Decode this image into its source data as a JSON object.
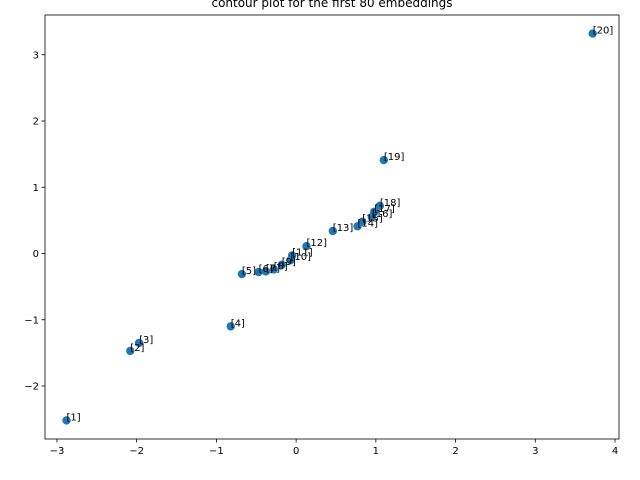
{
  "chart_data": {
    "type": "scatter",
    "title": "contour plot for the first 80 embeddings",
    "xlabel": "",
    "ylabel": "",
    "xlim": [
      -3.15,
      4.05
    ],
    "ylim": [
      -2.8,
      3.6
    ],
    "xticks": [
      -3,
      -2,
      -1,
      0,
      1,
      2,
      3,
      4
    ],
    "yticks": [
      -2,
      -1,
      0,
      1,
      2,
      3
    ],
    "grid": false,
    "marker_color": "#1f77b4",
    "points": [
      {
        "label": "[1]",
        "x": -2.88,
        "y": -2.52
      },
      {
        "label": "[2]",
        "x": -2.08,
        "y": -1.47
      },
      {
        "label": "[3]",
        "x": -1.97,
        "y": -1.35
      },
      {
        "label": "[4]",
        "x": -0.82,
        "y": -1.1
      },
      {
        "label": "[5]",
        "x": -0.68,
        "y": -0.31
      },
      {
        "label": "[6]",
        "x": -0.47,
        "y": -0.28
      },
      {
        "label": "[7]",
        "x": -0.38,
        "y": -0.27
      },
      {
        "label": "[8]",
        "x": -0.28,
        "y": -0.24
      },
      {
        "label": "[9]",
        "x": -0.18,
        "y": -0.17
      },
      {
        "label": "[10]",
        "x": -0.07,
        "y": -0.1
      },
      {
        "label": "[11]",
        "x": -0.05,
        "y": -0.03
      },
      {
        "label": "[12]",
        "x": 0.13,
        "y": 0.11
      },
      {
        "label": "[13]",
        "x": 0.46,
        "y": 0.34
      },
      {
        "label": "[14]",
        "x": 0.77,
        "y": 0.41
      },
      {
        "label": "[15]",
        "x": 0.83,
        "y": 0.48
      },
      {
        "label": "[16]",
        "x": 0.95,
        "y": 0.55
      },
      {
        "label": "[17]",
        "x": 0.98,
        "y": 0.63
      },
      {
        "label": "[18]",
        "x": 1.05,
        "y": 0.72
      },
      {
        "label": "[19]",
        "x": 1.1,
        "y": 1.41
      },
      {
        "label": "[20]",
        "x": 3.72,
        "y": 3.32
      }
    ]
  }
}
